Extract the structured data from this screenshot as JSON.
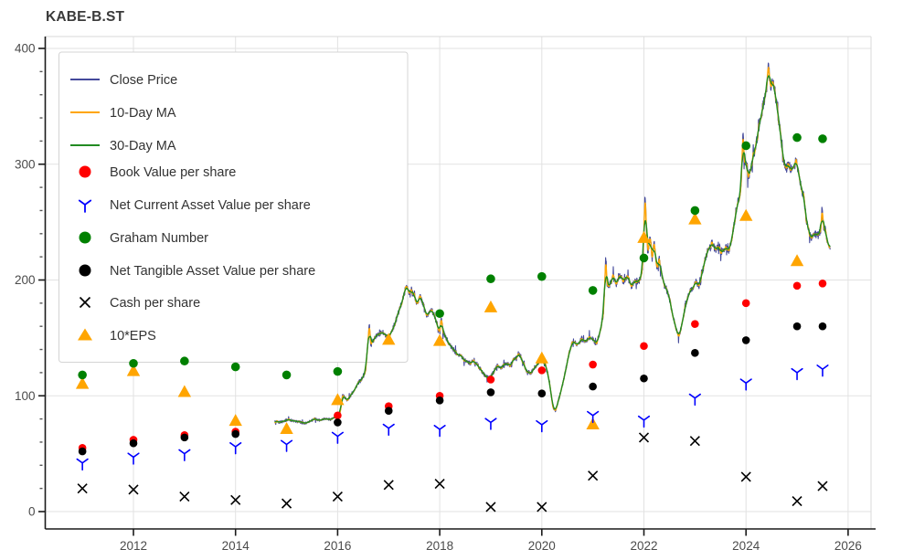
{
  "title": "KABE-B.ST",
  "colors": {
    "close": "#44499b",
    "ma10": "#ffa500",
    "ma30": "#228b22",
    "book_value": "#ff0000",
    "ncav": "#0000ff",
    "graham": "#008000",
    "ntav": "#000000",
    "cash": "#000000",
    "eps10": "#ffa500",
    "grid": "#e2e2e2",
    "spine_dark": "#1a1a1a",
    "spine_light": "#d9d9d9",
    "tick_label": "#4b4b4b",
    "legend_border": "#d4d4d4",
    "legend_text": "#333333"
  },
  "legend": {
    "items": [
      {
        "key": "close",
        "label": "Close Price",
        "type": "line",
        "color": "#44499b"
      },
      {
        "key": "ma10",
        "label": "10-Day MA",
        "type": "line",
        "color": "#ffa500"
      },
      {
        "key": "ma30",
        "label": "30-Day MA",
        "type": "line",
        "color": "#228b22"
      },
      {
        "key": "book_value",
        "label": "Book Value per share",
        "type": "dot",
        "color": "#ff0000"
      },
      {
        "key": "ncav",
        "label": "Net Current Asset Value per share",
        "type": "tri_down",
        "color": "#0000ff"
      },
      {
        "key": "graham",
        "label": "Graham Number",
        "type": "dot",
        "color": "#008000"
      },
      {
        "key": "ntav",
        "label": "Net Tangible Asset Value per share",
        "type": "dot",
        "color": "#000000"
      },
      {
        "key": "cash",
        "label": "Cash per share",
        "type": "x",
        "color": "#000000"
      },
      {
        "key": "eps10",
        "label": "10*EPS",
        "type": "tri_up",
        "color": "#ffa500"
      }
    ]
  },
  "chart_data": {
    "type": "line",
    "title": "KABE-B.ST",
    "xlabel": "",
    "ylabel": "",
    "x_ticks": [
      2012,
      2014,
      2016,
      2018,
      2020,
      2022,
      2024,
      2026
    ],
    "y_ticks": [
      0,
      100,
      200,
      300,
      400
    ],
    "y_minor_step": 20,
    "xlim": [
      2010.27,
      2026.45
    ],
    "ylim": [
      -15,
      410
    ],
    "grid": true,
    "legend_position": "upper-left",
    "line_series_names": [
      "Close Price",
      "10-Day MA",
      "30-Day MA"
    ],
    "price_keypoints": [
      [
        2014.77,
        78
      ],
      [
        2014.85,
        77
      ],
      [
        2014.95,
        78.5
      ],
      [
        2015.05,
        79.5
      ],
      [
        2015.15,
        78
      ],
      [
        2015.25,
        77.5
      ],
      [
        2015.35,
        76
      ],
      [
        2015.45,
        78
      ],
      [
        2015.55,
        80
      ],
      [
        2015.65,
        79
      ],
      [
        2015.75,
        80.5
      ],
      [
        2015.85,
        79.5
      ],
      [
        2015.95,
        81
      ],
      [
        2016.05,
        86
      ],
      [
        2016.1,
        101
      ],
      [
        2016.15,
        98
      ],
      [
        2016.2,
        96
      ],
      [
        2016.28,
        102
      ],
      [
        2016.35,
        107
      ],
      [
        2016.42,
        112
      ],
      [
        2016.5,
        116
      ],
      [
        2016.55,
        122
      ],
      [
        2016.6,
        150
      ],
      [
        2016.62,
        164
      ],
      [
        2016.65,
        143
      ],
      [
        2016.72,
        150
      ],
      [
        2016.8,
        153
      ],
      [
        2016.88,
        155
      ],
      [
        2016.95,
        151
      ],
      [
        2017.0,
        150
      ],
      [
        2017.05,
        155
      ],
      [
        2017.12,
        162
      ],
      [
        2017.2,
        173
      ],
      [
        2017.28,
        184
      ],
      [
        2017.35,
        196
      ],
      [
        2017.4,
        188
      ],
      [
        2017.45,
        192
      ],
      [
        2017.5,
        187
      ],
      [
        2017.55,
        179
      ],
      [
        2017.62,
        186
      ],
      [
        2017.7,
        176
      ],
      [
        2017.75,
        168
      ],
      [
        2017.82,
        175
      ],
      [
        2017.88,
        171
      ],
      [
        2017.95,
        162
      ],
      [
        2018.0,
        154
      ],
      [
        2018.03,
        168
      ],
      [
        2018.06,
        156
      ],
      [
        2018.12,
        150
      ],
      [
        2018.2,
        144
      ],
      [
        2018.3,
        138
      ],
      [
        2018.4,
        135
      ],
      [
        2018.5,
        131
      ],
      [
        2018.6,
        128
      ],
      [
        2018.68,
        131
      ],
      [
        2018.78,
        124
      ],
      [
        2018.88,
        118
      ],
      [
        2018.97,
        115
      ],
      [
        2019.05,
        120
      ],
      [
        2019.12,
        126
      ],
      [
        2019.2,
        124
      ],
      [
        2019.3,
        128
      ],
      [
        2019.38,
        126
      ],
      [
        2019.45,
        131
      ],
      [
        2019.55,
        136
      ],
      [
        2019.62,
        130
      ],
      [
        2019.7,
        122
      ],
      [
        2019.78,
        119
      ],
      [
        2019.85,
        124
      ],
      [
        2019.92,
        128
      ],
      [
        2020.0,
        131
      ],
      [
        2020.08,
        127
      ],
      [
        2020.15,
        112
      ],
      [
        2020.22,
        90
      ],
      [
        2020.27,
        87
      ],
      [
        2020.33,
        97
      ],
      [
        2020.4,
        108
      ],
      [
        2020.48,
        125
      ],
      [
        2020.55,
        140
      ],
      [
        2020.62,
        148
      ],
      [
        2020.7,
        144
      ],
      [
        2020.78,
        149
      ],
      [
        2020.85,
        146
      ],
      [
        2020.92,
        150
      ],
      [
        2021.0,
        149
      ],
      [
        2021.07,
        144
      ],
      [
        2021.13,
        153
      ],
      [
        2021.2,
        168
      ],
      [
        2021.23,
        192
      ],
      [
        2021.25,
        222
      ],
      [
        2021.28,
        194
      ],
      [
        2021.33,
        196
      ],
      [
        2021.4,
        203
      ],
      [
        2021.46,
        195
      ],
      [
        2021.52,
        206
      ],
      [
        2021.6,
        198
      ],
      [
        2021.68,
        203
      ],
      [
        2021.75,
        194
      ],
      [
        2021.82,
        200
      ],
      [
        2021.9,
        198
      ],
      [
        2021.97,
        208
      ],
      [
        2022.0,
        240
      ],
      [
        2022.02,
        278
      ],
      [
        2022.05,
        244
      ],
      [
        2022.08,
        222
      ],
      [
        2022.12,
        240
      ],
      [
        2022.16,
        218
      ],
      [
        2022.2,
        232
      ],
      [
        2022.25,
        210
      ],
      [
        2022.3,
        218
      ],
      [
        2022.37,
        200
      ],
      [
        2022.44,
        192
      ],
      [
        2022.5,
        184
      ],
      [
        2022.56,
        170
      ],
      [
        2022.62,
        160
      ],
      [
        2022.68,
        152
      ],
      [
        2022.73,
        158
      ],
      [
        2022.78,
        170
      ],
      [
        2022.84,
        183
      ],
      [
        2022.9,
        190
      ],
      [
        2022.96,
        193
      ],
      [
        2023.02,
        198
      ],
      [
        2023.08,
        194
      ],
      [
        2023.14,
        205
      ],
      [
        2023.2,
        218
      ],
      [
        2023.27,
        228
      ],
      [
        2023.33,
        232
      ],
      [
        2023.4,
        226
      ],
      [
        2023.47,
        229
      ],
      [
        2023.54,
        224
      ],
      [
        2023.6,
        228
      ],
      [
        2023.66,
        225
      ],
      [
        2023.72,
        235
      ],
      [
        2023.78,
        252
      ],
      [
        2023.84,
        268
      ],
      [
        2023.9,
        278
      ],
      [
        2023.94,
        330
      ],
      [
        2023.97,
        300
      ],
      [
        2024.0,
        304
      ],
      [
        2024.05,
        288
      ],
      [
        2024.1,
        298
      ],
      [
        2024.16,
        310
      ],
      [
        2024.22,
        322
      ],
      [
        2024.28,
        340
      ],
      [
        2024.34,
        352
      ],
      [
        2024.4,
        362
      ],
      [
        2024.44,
        385
      ],
      [
        2024.48,
        368
      ],
      [
        2024.52,
        372
      ],
      [
        2024.57,
        362
      ],
      [
        2024.62,
        344
      ],
      [
        2024.67,
        330
      ],
      [
        2024.72,
        308
      ],
      [
        2024.78,
        296
      ],
      [
        2024.84,
        300
      ],
      [
        2024.9,
        294
      ],
      [
        2024.96,
        299
      ],
      [
        2024.98,
        308
      ],
      [
        2025.0,
        300
      ],
      [
        2025.04,
        292
      ],
      [
        2025.08,
        280
      ],
      [
        2025.13,
        272
      ],
      [
        2025.18,
        252
      ],
      [
        2025.23,
        242
      ],
      [
        2025.28,
        237
      ],
      [
        2025.34,
        241
      ],
      [
        2025.4,
        238
      ],
      [
        2025.46,
        242
      ],
      [
        2025.49,
        262
      ],
      [
        2025.52,
        246
      ],
      [
        2025.55,
        244
      ],
      [
        2025.6,
        232
      ],
      [
        2025.65,
        225
      ]
    ],
    "noise_amp": 0.014,
    "annual_markers": {
      "years": [
        2011,
        2012,
        2013,
        2014,
        2015,
        2016,
        2017,
        2018,
        2019,
        2020,
        2021,
        2022,
        2023,
        2024,
        2025,
        2025.5
      ],
      "book_value": [
        55,
        62,
        66,
        69,
        null,
        83,
        91,
        100,
        114,
        122,
        127,
        143,
        162,
        180,
        195,
        197
      ],
      "ncav": [
        42,
        47,
        50,
        56,
        58,
        65,
        72,
        71,
        77,
        75,
        83,
        79,
        98,
        111,
        120,
        123
      ],
      "graham": [
        118,
        128,
        130,
        125,
        118,
        121,
        null,
        171,
        201,
        203,
        191,
        219,
        260,
        316,
        323,
        322
      ],
      "ntav": [
        52,
        59,
        64,
        67,
        null,
        77,
        87,
        96,
        103,
        102,
        108,
        115,
        137,
        148,
        160,
        160
      ],
      "cash": [
        20,
        19,
        13,
        10,
        7,
        13,
        23,
        24,
        4,
        4,
        31,
        64,
        61,
        30,
        9,
        22
      ],
      "eps10": [
        110,
        121,
        103,
        78,
        71,
        96,
        148,
        147,
        176,
        132,
        75,
        236,
        252,
        255,
        216,
        null
      ]
    }
  }
}
